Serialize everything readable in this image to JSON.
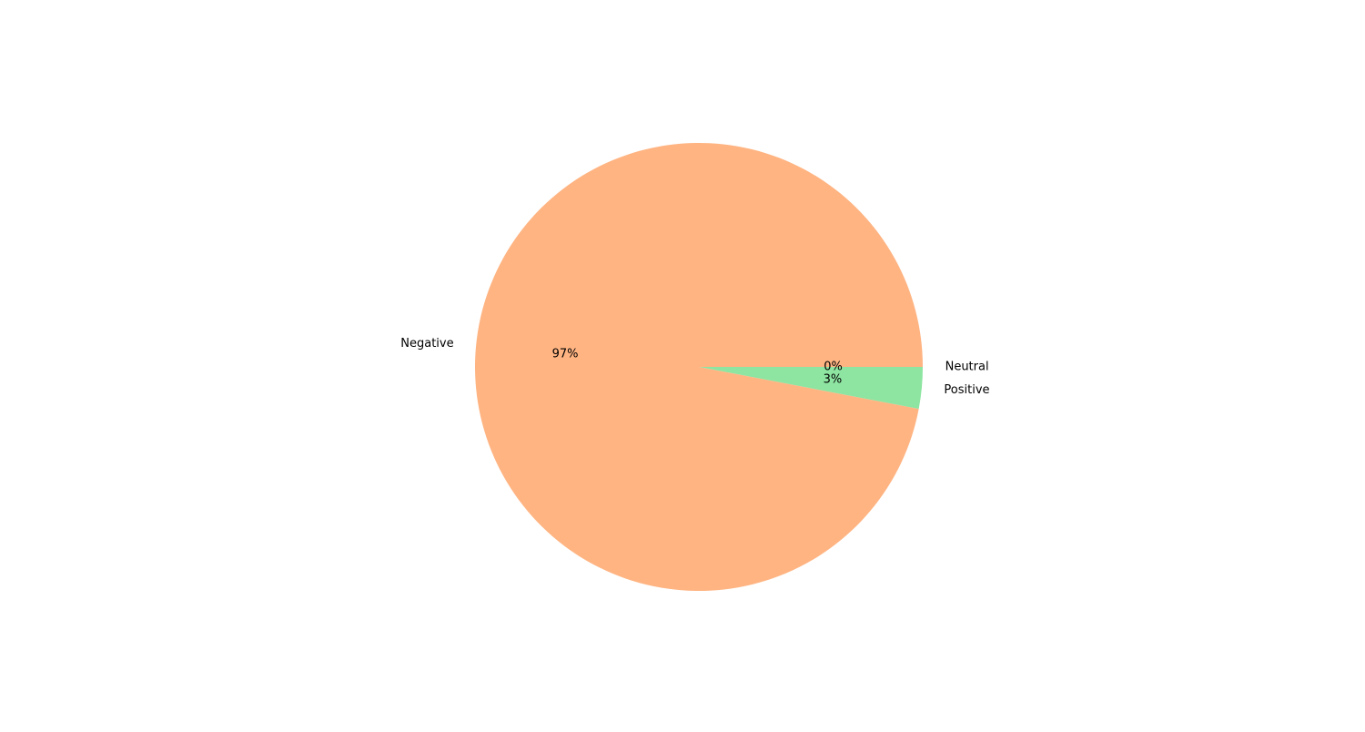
{
  "chart_data": {
    "type": "pie",
    "title": "",
    "slices": [
      {
        "label": "Neutral",
        "value": 0,
        "pct_label": "0%",
        "color": "#a1c9f4"
      },
      {
        "label": "Positive",
        "value": 3,
        "pct_label": "3%",
        "color": "#8de5a1"
      },
      {
        "label": "Negative",
        "value": 97,
        "pct_label": "97%",
        "color": "#ffb482"
      }
    ],
    "start_angle_deg": 0,
    "direction": "clockwise",
    "legend": "none"
  }
}
